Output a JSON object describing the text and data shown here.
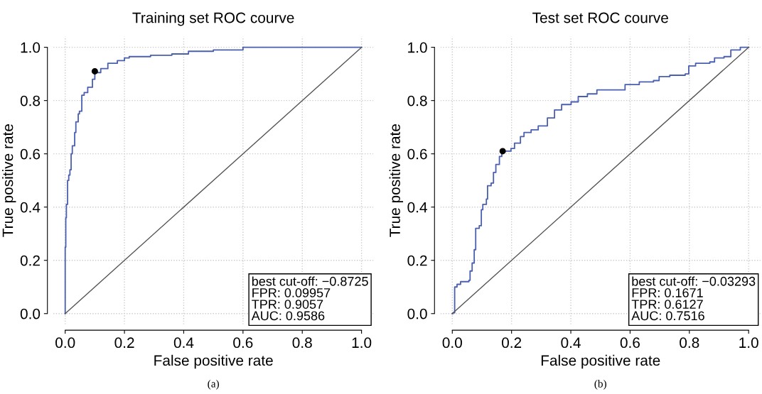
{
  "chart_data": [
    {
      "type": "line",
      "title": "Training set ROC courve",
      "xlabel": "False positive rate",
      "ylabel": "True positive rate",
      "xlim": [
        -0.04,
        1.04
      ],
      "ylim": [
        -0.04,
        1.04
      ],
      "xticks": [
        {
          "value": 0,
          "label": "0.0"
        },
        {
          "value": 0.2,
          "label": "0.2"
        },
        {
          "value": 0.4,
          "label": "0.4"
        },
        {
          "value": 0.6,
          "label": "0.6"
        },
        {
          "value": 0.8,
          "label": "0.8"
        },
        {
          "value": 1,
          "label": "1.0"
        }
      ],
      "yticks": [
        {
          "value": 0,
          "label": "0.0"
        },
        {
          "value": 0.2,
          "label": "0.2"
        },
        {
          "value": 0.4,
          "label": "0.4"
        },
        {
          "value": 0.6,
          "label": "0.6"
        },
        {
          "value": 0.8,
          "label": "0.8"
        },
        {
          "value": 1,
          "label": "1.0"
        }
      ],
      "grid": true,
      "legend": false,
      "series": [
        {
          "color": "#4a5fb0",
          "type": "step",
          "x": [
            0,
            0,
            0.002,
            0.004,
            0.008,
            0.012,
            0.016,
            0.02,
            0.024,
            0.032,
            0.036,
            0.044,
            0.048,
            0.056,
            0.064,
            0.076,
            0.092,
            0.1,
            0.12,
            0.144,
            0.176,
            0.2,
            0.216,
            0.288,
            0.36,
            0.416,
            0.5,
            0.6,
            1
          ],
          "values": [
            0,
            0.25,
            0.36,
            0.41,
            0.5,
            0.52,
            0.54,
            0.6,
            0.63,
            0.68,
            0.72,
            0.75,
            0.76,
            0.82,
            0.83,
            0.85,
            0.88,
            0.905,
            0.92,
            0.94,
            0.95,
            0.96,
            0.965,
            0.97,
            0.975,
            0.985,
            0.99,
            1,
            1
          ]
        },
        {
          "color": "#555555",
          "x": [
            0,
            1
          ],
          "values": [
            0,
            1
          ]
        },
        {
          "color": "#000000",
          "type": "scatter",
          "x": [
            0.1
          ],
          "values": [
            0.91
          ]
        }
      ],
      "annotations": [
        "best cut-off: −0.8725",
        "FPR: 0.09957",
        "TPR: 0.9057",
        "AUC: 0.9586",
        "(a)"
      ]
    },
    {
      "type": "line",
      "title": "Test set ROC courve",
      "xlabel": "False positive rate",
      "ylabel": "True positive rate",
      "xlim": [
        -0.04,
        1.04
      ],
      "ylim": [
        -0.04,
        1.04
      ],
      "xticks": [
        {
          "value": 0,
          "label": "0.0"
        },
        {
          "value": 0.2,
          "label": "0.2"
        },
        {
          "value": 0.4,
          "label": "0.4"
        },
        {
          "value": 0.6,
          "label": "0.6"
        },
        {
          "value": 0.8,
          "label": "0.8"
        },
        {
          "value": 1,
          "label": "1.0"
        }
      ],
      "yticks": [
        {
          "value": 0,
          "label": "0.0"
        },
        {
          "value": 0.2,
          "label": "0.2"
        },
        {
          "value": 0.4,
          "label": "0.4"
        },
        {
          "value": 0.6,
          "label": "0.6"
        },
        {
          "value": 0.8,
          "label": "0.8"
        },
        {
          "value": 1,
          "label": "1.0"
        }
      ],
      "grid": true,
      "legend": false,
      "series": [
        {
          "color": "#4a5fb0",
          "type": "step",
          "x": [
            0,
            0.002,
            0.008,
            0.016,
            0.028,
            0.056,
            0.06,
            0.067,
            0.074,
            0.079,
            0.091,
            0.098,
            0.103,
            0.115,
            0.119,
            0.131,
            0.139,
            0.147,
            0.159,
            0.167,
            0.198,
            0.21,
            0.23,
            0.242,
            0.266,
            0.29,
            0.321,
            0.345,
            0.369,
            0.401,
            0.425,
            0.456,
            0.488,
            0.544,
            0.583,
            0.631,
            0.679,
            0.698,
            0.734,
            0.786,
            0.798,
            0.821,
            0.869,
            0.885,
            0.917,
            0.94,
            0.972,
            1
          ],
          "values": [
            0,
            0.003,
            0.1,
            0.11,
            0.12,
            0.125,
            0.16,
            0.19,
            0.24,
            0.32,
            0.33,
            0.39,
            0.41,
            0.43,
            0.48,
            0.49,
            0.53,
            0.56,
            0.59,
            0.61,
            0.62,
            0.64,
            0.665,
            0.68,
            0.69,
            0.705,
            0.735,
            0.765,
            0.785,
            0.795,
            0.815,
            0.825,
            0.84,
            0.84,
            0.86,
            0.87,
            0.875,
            0.89,
            0.895,
            0.9,
            0.93,
            0.94,
            0.945,
            0.96,
            0.965,
            0.99,
            1,
            1
          ]
        },
        {
          "color": "#555555",
          "x": [
            0,
            1
          ],
          "values": [
            0,
            1
          ]
        },
        {
          "color": "#000000",
          "type": "scatter",
          "x": [
            0.17
          ],
          "values": [
            0.61
          ]
        }
      ],
      "annotations": [
        "best cut-off: −0.03293",
        "FPR: 0.1671",
        "TPR: 0.6127",
        "AUC: 0.7516",
        "(b)"
      ]
    }
  ]
}
